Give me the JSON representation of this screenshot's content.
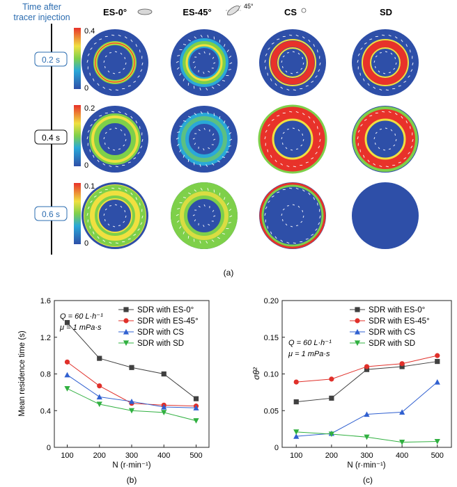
{
  "panel_a": {
    "timeline_title": [
      "Time after",
      "tracer injection"
    ],
    "columns": [
      "ES-0°",
      "ES-45°",
      "CS",
      "SD"
    ],
    "es45_angle": "45°",
    "rows": [
      {
        "time": "0.2 s",
        "scale_max": "0.4",
        "scale_min": "0"
      },
      {
        "time": "0.4 s",
        "scale_max": "0.2",
        "scale_min": "0"
      },
      {
        "time": "0.6 s",
        "scale_max": "0.1",
        "scale_min": "0"
      }
    ],
    "caption": "(a)",
    "colors": {
      "low": "#2e4fa8",
      "mid": "#7ed04a",
      "high": "#e8322a",
      "accent": "#2b6cb0"
    }
  },
  "chart_data": [
    {
      "type": "line",
      "caption": "(b)",
      "xlabel": "N (r·min⁻¹)",
      "ylabel": "Mean residence time (s)",
      "x": [
        100,
        200,
        300,
        400,
        500
      ],
      "xlim": [
        60,
        540
      ],
      "ylim": [
        0,
        1.6
      ],
      "yticks": [
        "0",
        "0.4",
        "0.8",
        "1.2",
        "1.6"
      ],
      "xticks": [
        "100",
        "200",
        "300",
        "400",
        "500"
      ],
      "conditions": [
        "Q = 60 L·h⁻¹",
        "μ = 1 mPa·s"
      ],
      "series": [
        {
          "name": "SDR with ES-0°",
          "color": "#404040",
          "marker": "square",
          "values": [
            1.36,
            0.97,
            0.87,
            0.8,
            0.53
          ]
        },
        {
          "name": "SDR with ES-45°",
          "color": "#e0302a",
          "marker": "circle",
          "values": [
            0.93,
            0.67,
            0.48,
            0.46,
            0.45
          ]
        },
        {
          "name": "SDR with CS",
          "color": "#3060d0",
          "marker": "triangle-up",
          "values": [
            0.79,
            0.55,
            0.5,
            0.44,
            0.43
          ]
        },
        {
          "name": "SDR with SD",
          "color": "#30b040",
          "marker": "triangle-down",
          "values": [
            0.64,
            0.47,
            0.4,
            0.38,
            0.29
          ]
        }
      ]
    },
    {
      "type": "line",
      "caption": "(c)",
      "xlabel": "N (r·min⁻¹)",
      "ylabel": "σθ²",
      "x": [
        100,
        200,
        300,
        400,
        500
      ],
      "xlim": [
        60,
        540
      ],
      "ylim": [
        0,
        0.2
      ],
      "yticks": [
        "0",
        "0.05",
        "0.10",
        "0.15",
        "0.20"
      ],
      "xticks": [
        "100",
        "200",
        "300",
        "400",
        "500"
      ],
      "conditions": [
        "Q = 60 L·h⁻¹",
        "μ = 1 mPa·s"
      ],
      "series": [
        {
          "name": "SDR with ES-0°",
          "color": "#404040",
          "marker": "square",
          "values": [
            0.062,
            0.067,
            0.106,
            0.11,
            0.117
          ]
        },
        {
          "name": "SDR with ES-45°",
          "color": "#e0302a",
          "marker": "circle",
          "values": [
            0.089,
            0.093,
            0.11,
            0.114,
            0.125
          ]
        },
        {
          "name": "SDR with CS",
          "color": "#3060d0",
          "marker": "triangle-up",
          "values": [
            0.015,
            0.019,
            0.045,
            0.048,
            0.089
          ]
        },
        {
          "name": "SDR with SD",
          "color": "#30b040",
          "marker": "triangle-down",
          "values": [
            0.021,
            0.018,
            0.014,
            0.007,
            0.008
          ]
        }
      ]
    }
  ]
}
